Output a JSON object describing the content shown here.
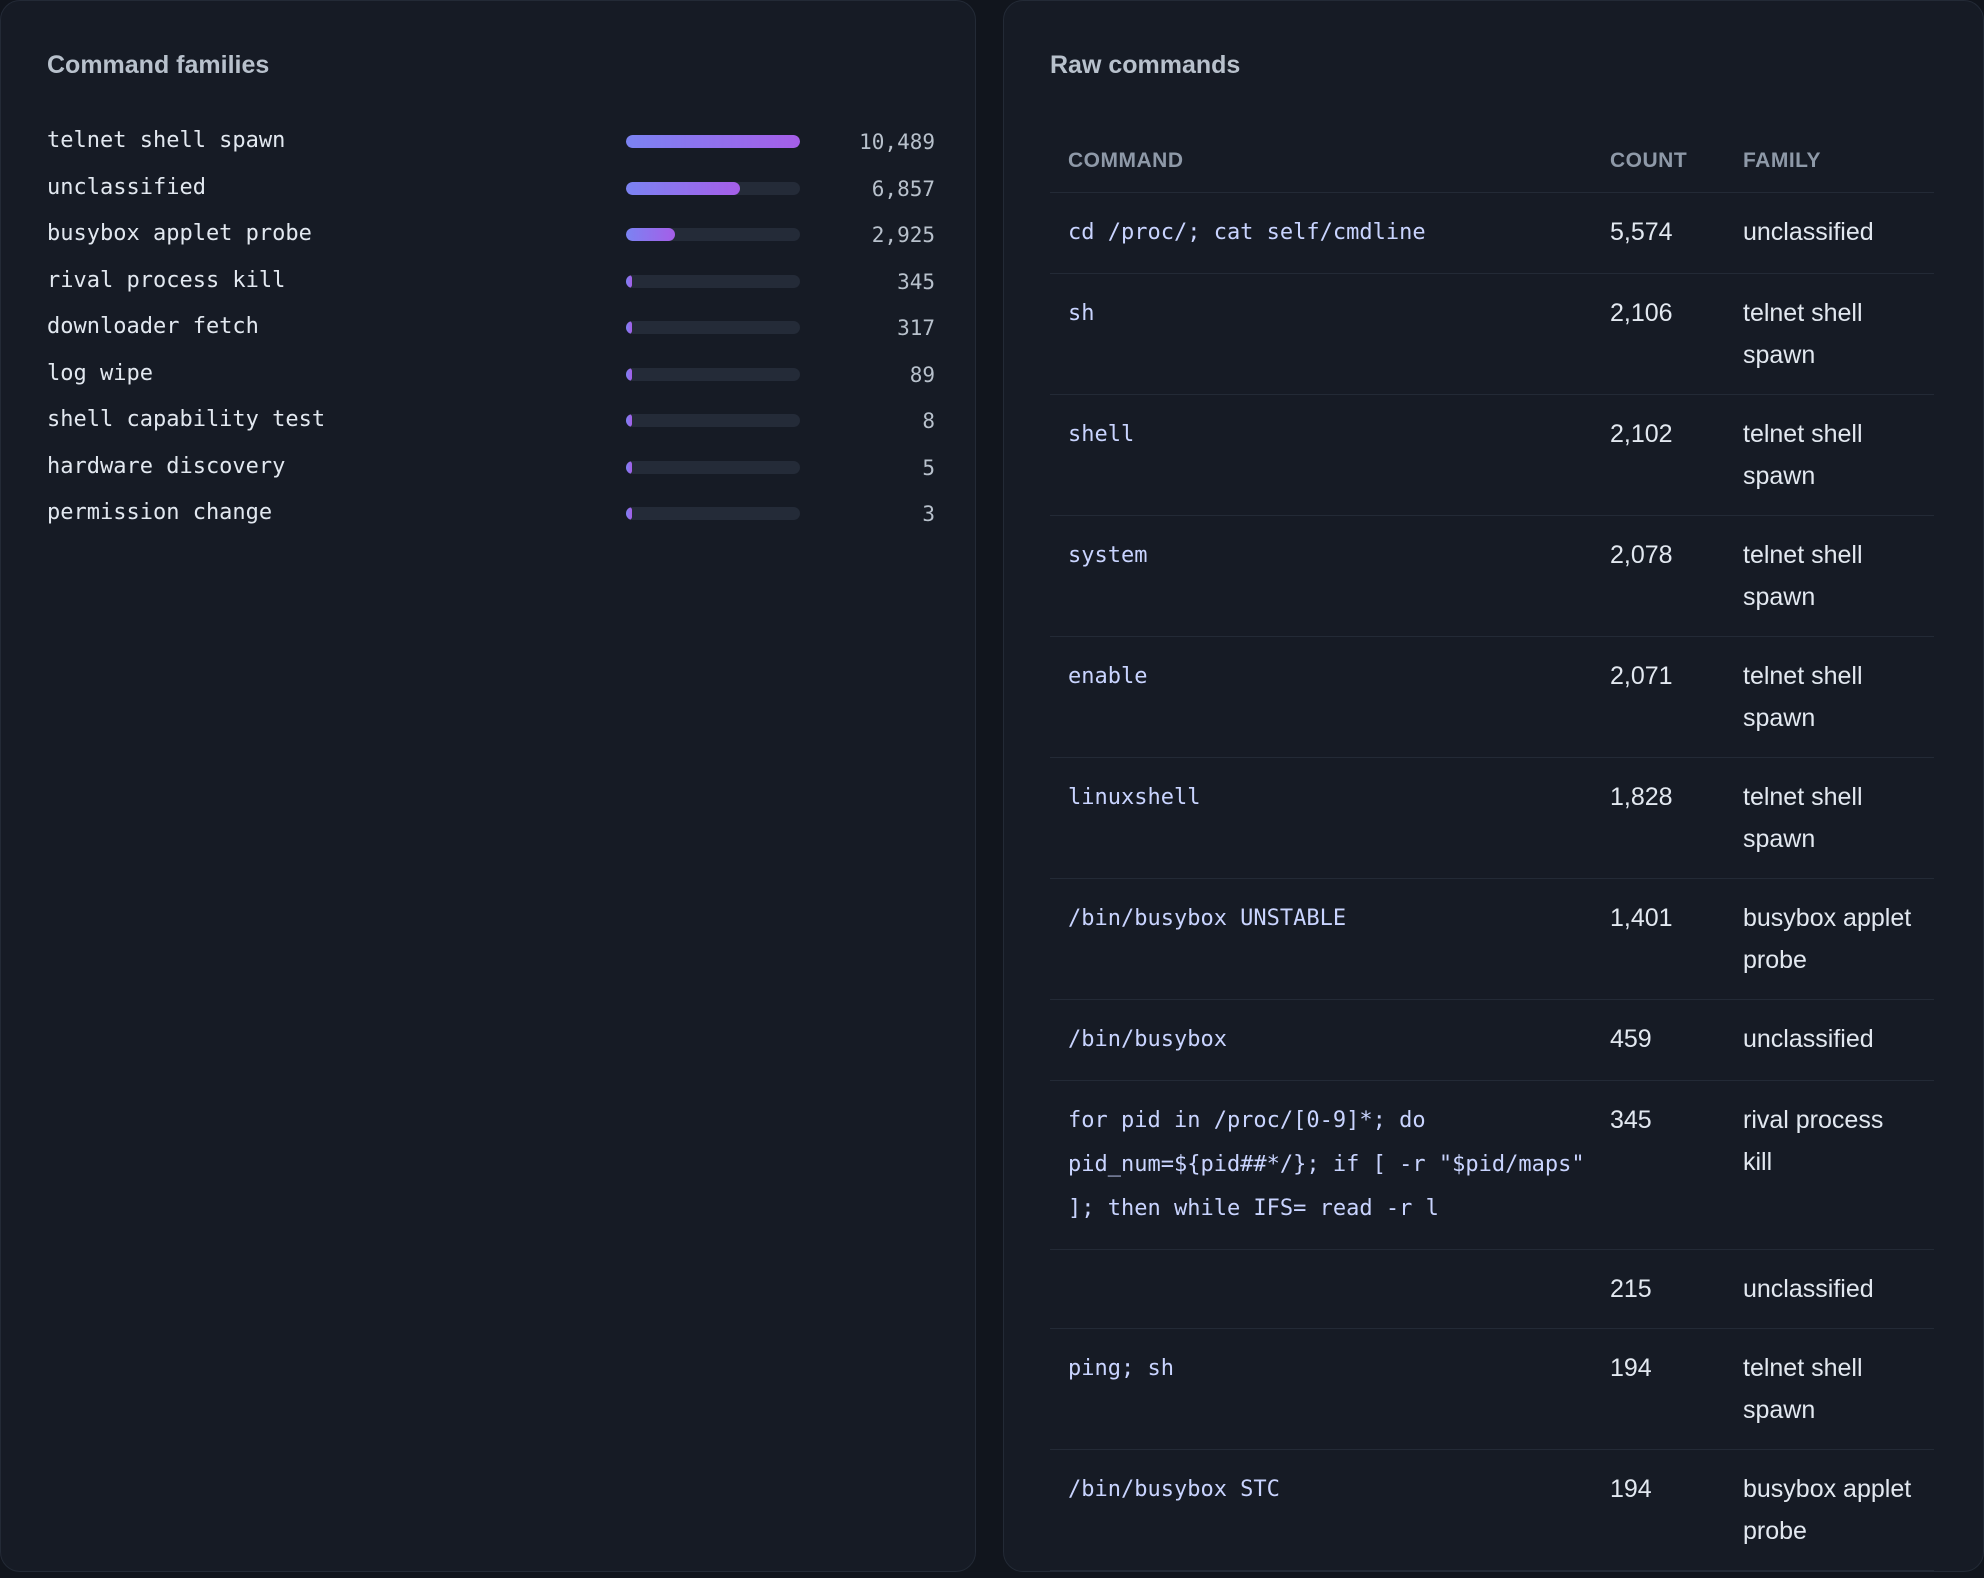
{
  "families_panel": {
    "title": "Command families",
    "items": [
      {
        "label": "telnet shell spawn",
        "count": "10,489",
        "fraction": 1.0
      },
      {
        "label": "unclassified",
        "count": "6,857",
        "fraction": 0.654
      },
      {
        "label": "busybox applet probe",
        "count": "2,925",
        "fraction": 0.279
      },
      {
        "label": "rival process kill",
        "count": "345",
        "fraction": 0.033
      },
      {
        "label": "downloader fetch",
        "count": "317",
        "fraction": 0.03
      },
      {
        "label": "log wipe",
        "count": "89",
        "fraction": 0.0085
      },
      {
        "label": "shell capability test",
        "count": "8",
        "fraction": 0.0008
      },
      {
        "label": "hardware discovery",
        "count": "5",
        "fraction": 0.0005
      },
      {
        "label": "permission change",
        "count": "3",
        "fraction": 0.0003
      }
    ]
  },
  "raw_panel": {
    "title": "Raw commands",
    "columns": {
      "command": "COMMAND",
      "count": "COUNT",
      "family": "FAMILY"
    },
    "rows": [
      {
        "command": "cd /proc/; cat self/cmdline",
        "count": "5,574",
        "family": "unclassified"
      },
      {
        "command": "sh",
        "count": "2,106",
        "family": "telnet shell spawn"
      },
      {
        "command": "shell",
        "count": "2,102",
        "family": "telnet shell spawn"
      },
      {
        "command": "system",
        "count": "2,078",
        "family": "telnet shell spawn"
      },
      {
        "command": "enable",
        "count": "2,071",
        "family": "telnet shell spawn"
      },
      {
        "command": "linuxshell",
        "count": "1,828",
        "family": "telnet shell spawn"
      },
      {
        "command": "/bin/busybox UNSTABLE",
        "count": "1,401",
        "family": "busybox applet probe"
      },
      {
        "command": "/bin/busybox",
        "count": "459",
        "family": "unclassified"
      },
      {
        "command": "for pid in /proc/[0-9]*; do pid_num=${pid##*/}; if [ -r \"$pid/maps\" ]; then while IFS= read -r l",
        "count": "345",
        "family": "rival process kill"
      },
      {
        "command": "",
        "count": "215",
        "family": "unclassified"
      },
      {
        "command": "ping; sh",
        "count": "194",
        "family": "telnet shell spawn"
      },
      {
        "command": "/bin/busybox STC",
        "count": "194",
        "family": "busybox applet probe"
      }
    ]
  },
  "colors": {
    "background": "#11151d",
    "panel": "#161b25",
    "bar_gradient_start": "#7b83f2",
    "bar_gradient_end": "#a55ee8",
    "bar_track": "#242b38"
  }
}
